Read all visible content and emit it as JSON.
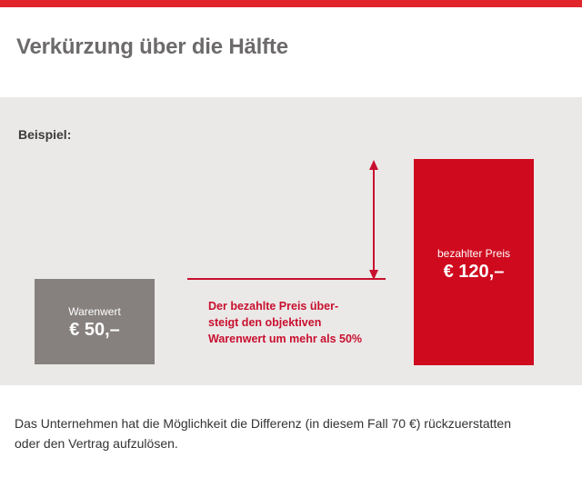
{
  "title": "Verkürzung über die Hälfte",
  "panel": {
    "example_label": "Beispiel:",
    "item_value": {
      "caption": "Warenwert",
      "price": "€ 50,–"
    },
    "paid_price": {
      "caption": "bezahlter Preis",
      "price": "€ 120,–"
    },
    "annotation": [
      "Der bezahlte Preis über-",
      "steigt den objektiven",
      "Warenwert um mehr als 50%"
    ]
  },
  "footer": [
    "Das Unternehmen hat die Möglichkeit die Differenz (in diesem Fall 70 €) rückzuerstatten",
    "oder den Vertrag aufzulösen."
  ],
  "colors": {
    "accent_red": "#cf0a1e",
    "grey_box": "#86807f",
    "panel_bg": "#ebe8e8",
    "top_bar": "#e2252b"
  }
}
